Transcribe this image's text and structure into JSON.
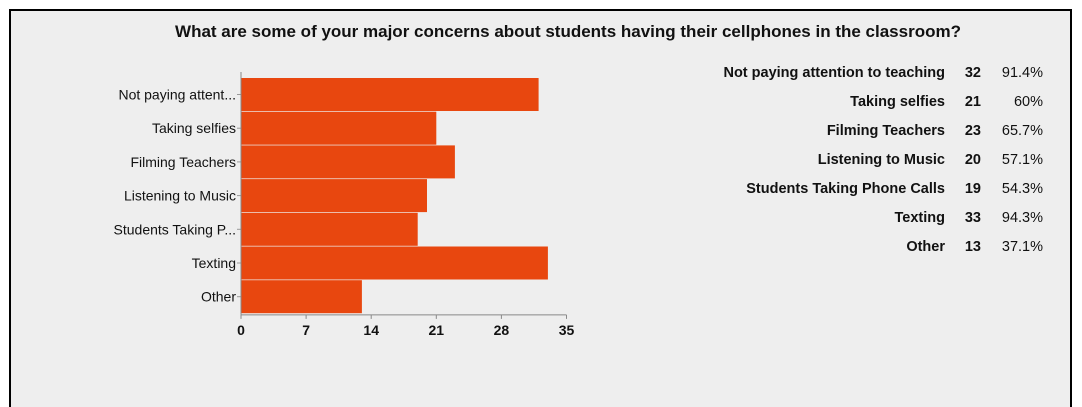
{
  "chart_data": {
    "type": "bar",
    "orientation": "horizontal",
    "title": "What are some of your major concerns about students having their cellphones in the classroom?",
    "categories": [
      "Not paying attent...",
      "Taking selfies",
      "Filming Teachers",
      "Listening to Music",
      "Students Taking P...",
      "Texting",
      "Other"
    ],
    "values": [
      32,
      21,
      23,
      20,
      19,
      33,
      13
    ],
    "xlim": [
      0,
      35
    ],
    "xticks": [
      "0",
      "7",
      "14",
      "21",
      "28",
      "35"
    ],
    "bar_color": "#e8470f",
    "grid": false,
    "table": {
      "labels": [
        "Not paying attention to teaching",
        "Taking selfies",
        "Filming Teachers",
        "Listening to Music",
        "Students Taking Phone Calls",
        "Texting",
        "Other"
      ],
      "counts": [
        "32",
        "21",
        "23",
        "20",
        "19",
        "33",
        "13"
      ],
      "percents": [
        "91.4%",
        "60%",
        "65.7%",
        "57.1%",
        "54.3%",
        "94.3%",
        "37.1%"
      ]
    }
  }
}
